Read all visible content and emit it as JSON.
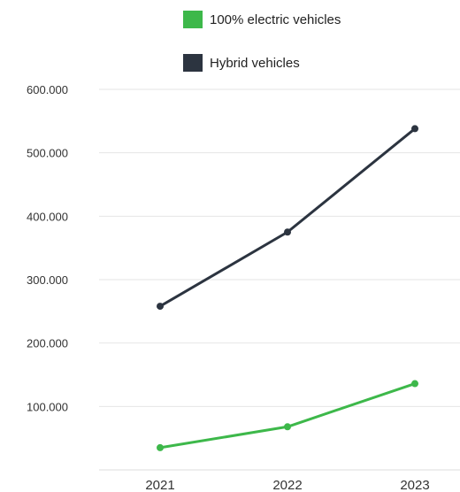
{
  "chart_data": {
    "type": "line",
    "categories": [
      "2021",
      "2022",
      "2023"
    ],
    "series": [
      {
        "name": "100% electric vehicles",
        "values": [
          35000,
          68000,
          136000
        ],
        "color": "#3db84a"
      },
      {
        "name": "Hybrid vehicles",
        "values": [
          258000,
          375000,
          538000
        ],
        "color": "#2c3440"
      }
    ],
    "y_ticks": [
      100000,
      200000,
      300000,
      400000,
      500000,
      600000
    ],
    "y_tick_labels": [
      "100.000",
      "200.000",
      "300.000",
      "400.000",
      "500.000",
      "600.000"
    ],
    "ylim": [
      0,
      600000
    ],
    "grid": true,
    "legend_position": "top-right",
    "gridline_color": "#e6e6e6",
    "axis_label_color": "#333333"
  }
}
